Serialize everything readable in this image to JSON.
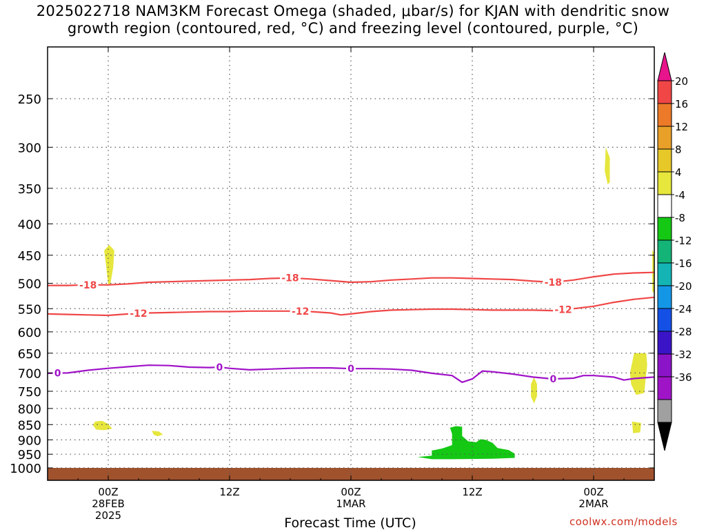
{
  "title": {
    "line1": "2025022718 NAM3KM Forecast Omega (shaded, μbar/s) for KJAN with dendritic snow",
    "line2": "growth region (contoured, red, °C) and freezing level (contoured, purple, °C)"
  },
  "credit": "coolwx.com/models",
  "chart_data": {
    "type": "time-height cross-section",
    "xlabel": "Forecast Time (UTC)",
    "x_units": "hours since 2025-02-27 18Z",
    "xlim": [
      0,
      60
    ],
    "x_ticks": [
      {
        "h": 6,
        "lines": [
          "00Z",
          "28FEB",
          "2025"
        ]
      },
      {
        "h": 18,
        "lines": [
          "12Z"
        ]
      },
      {
        "h": 30,
        "lines": [
          "00Z",
          "1MAR"
        ]
      },
      {
        "h": 42,
        "lines": [
          "12Z"
        ]
      },
      {
        "h": 54,
        "lines": [
          "00Z",
          "2MAR"
        ]
      }
    ],
    "ylabel": "",
    "y_units": "hPa",
    "y_scale": "log",
    "ylim": [
      1000,
      200
    ],
    "y_ticks": [
      250,
      300,
      350,
      400,
      450,
      500,
      550,
      600,
      650,
      700,
      750,
      800,
      850,
      900,
      950,
      1000
    ],
    "grid": true,
    "colorbar": {
      "labels": [
        20,
        16,
        12,
        8,
        4,
        -4,
        -8,
        -12,
        -16,
        -20,
        -24,
        -28,
        -32,
        -36
      ],
      "colors": [
        "#e8148c",
        "#f04646",
        "#ec7a28",
        "#e8a028",
        "#e6c828",
        "#e6e63c",
        "#ffffff",
        "#14c814",
        "#14b478",
        "#14b4b4",
        "#1496e6",
        "#1450e6",
        "#3c14c8",
        "#8c14c8",
        "#a014c8",
        "#a0a0a0",
        "#000000"
      ]
    },
    "contours": [
      {
        "label": "-18",
        "kind": "dendritic",
        "color": "#f04646",
        "points": [
          [
            0,
            504
          ],
          [
            2,
            504
          ],
          [
            4,
            503
          ],
          [
            6,
            503
          ],
          [
            8,
            501
          ],
          [
            10,
            498
          ],
          [
            12,
            497
          ],
          [
            14,
            496
          ],
          [
            16,
            495
          ],
          [
            18,
            494
          ],
          [
            20,
            493
          ],
          [
            22,
            491
          ],
          [
            24,
            490
          ],
          [
            26,
            492
          ],
          [
            28,
            495
          ],
          [
            30,
            498
          ],
          [
            32,
            497
          ],
          [
            34,
            494
          ],
          [
            36,
            492
          ],
          [
            38,
            490
          ],
          [
            40,
            490
          ],
          [
            42,
            491
          ],
          [
            44,
            492
          ],
          [
            46,
            493
          ],
          [
            48,
            496
          ],
          [
            50,
            498
          ],
          [
            52,
            494
          ],
          [
            54,
            488
          ],
          [
            56,
            483
          ],
          [
            58,
            481
          ],
          [
            60,
            480
          ]
        ],
        "labels_at": [
          4,
          24,
          50
        ]
      },
      {
        "label": "-12",
        "kind": "dendritic",
        "color": "#f04646",
        "points": [
          [
            0,
            561
          ],
          [
            2,
            562
          ],
          [
            4,
            563
          ],
          [
            6,
            564
          ],
          [
            8,
            561
          ],
          [
            10,
            559
          ],
          [
            12,
            558
          ],
          [
            14,
            557
          ],
          [
            16,
            556
          ],
          [
            18,
            556
          ],
          [
            20,
            555
          ],
          [
            22,
            555
          ],
          [
            24,
            555
          ],
          [
            26,
            556
          ],
          [
            28,
            559
          ],
          [
            29,
            563
          ],
          [
            30,
            561
          ],
          [
            32,
            556
          ],
          [
            34,
            553
          ],
          [
            36,
            552
          ],
          [
            38,
            551
          ],
          [
            40,
            551
          ],
          [
            42,
            552
          ],
          [
            44,
            553
          ],
          [
            46,
            553
          ],
          [
            48,
            553
          ],
          [
            50,
            554
          ],
          [
            52,
            550
          ],
          [
            54,
            545
          ],
          [
            56,
            537
          ],
          [
            58,
            531
          ],
          [
            60,
            527
          ]
        ],
        "labels_at": [
          9,
          25,
          51
        ]
      },
      {
        "label": "0",
        "kind": "freezing",
        "color": "#a012c8",
        "points": [
          [
            0,
            701
          ],
          [
            2,
            700
          ],
          [
            4,
            693
          ],
          [
            6,
            688
          ],
          [
            8,
            684
          ],
          [
            10,
            680
          ],
          [
            12,
            681
          ],
          [
            14,
            685
          ],
          [
            16,
            686
          ],
          [
            17,
            685
          ],
          [
            18,
            688
          ],
          [
            20,
            692
          ],
          [
            22,
            690
          ],
          [
            24,
            688
          ],
          [
            26,
            687
          ],
          [
            28,
            687
          ],
          [
            30,
            689
          ],
          [
            32,
            689
          ],
          [
            34,
            690
          ],
          [
            36,
            693
          ],
          [
            38,
            701
          ],
          [
            40,
            707
          ],
          [
            41,
            725
          ],
          [
            42,
            716
          ],
          [
            43,
            695
          ],
          [
            44,
            697
          ],
          [
            46,
            703
          ],
          [
            48,
            711
          ],
          [
            50,
            716
          ],
          [
            52,
            714
          ],
          [
            53,
            707
          ],
          [
            54,
            707
          ],
          [
            56,
            711
          ],
          [
            57,
            719
          ],
          [
            58,
            715
          ],
          [
            60,
            711
          ]
        ],
        "labels_at": [
          1,
          17,
          30,
          50
        ]
      }
    ],
    "shading": [
      {
        "class": "4 to 8",
        "color": "#e6e63c",
        "polygons": [
          [
            [
              6.1,
              433
            ],
            [
              6.6,
              442
            ],
            [
              6.5,
              470
            ],
            [
              6.2,
              503
            ],
            [
              6.0,
              503
            ],
            [
              5.8,
              470
            ],
            [
              5.6,
              442
            ]
          ],
          [
            [
              4.7,
              840
            ],
            [
              5.4,
              838
            ],
            [
              6.0,
              848
            ],
            [
              6.4,
              863
            ],
            [
              5.6,
              868
            ],
            [
              4.8,
              866
            ],
            [
              4.5,
              852
            ]
          ],
          [
            [
              10.3,
              870
            ],
            [
              11.0,
              872
            ],
            [
              11.4,
              882
            ],
            [
              10.9,
              888
            ],
            [
              10.5,
              883
            ]
          ],
          [
            [
              48.1,
              712
            ],
            [
              48.4,
              730
            ],
            [
              48.4,
              764
            ],
            [
              48.1,
              785
            ],
            [
              47.8,
              765
            ],
            [
              47.8,
              730
            ]
          ],
          [
            [
              55.2,
              300
            ],
            [
              55.6,
              312
            ],
            [
              55.6,
              342
            ],
            [
              55.4,
              345
            ],
            [
              55.1,
              328
            ]
          ],
          [
            [
              59.8,
              440
            ],
            [
              60.0,
              448
            ],
            [
              60.0,
              520
            ],
            [
              59.8,
              515
            ],
            [
              59.8,
              480
            ]
          ],
          [
            [
              58.0,
              650
            ],
            [
              59.2,
              650
            ],
            [
              59.3,
              680
            ],
            [
              59.0,
              755
            ],
            [
              58.2,
              760
            ],
            [
              57.7,
              730
            ],
            [
              57.6,
              700
            ]
          ],
          [
            [
              57.8,
              840
            ],
            [
              58.7,
              845
            ],
            [
              58.6,
              875
            ],
            [
              57.9,
              878
            ]
          ]
        ]
      },
      {
        "class": "-8 to -4",
        "color": "#14c814",
        "polygons": [
          [
            [
              38.0,
              937
            ],
            [
              39.0,
              930
            ],
            [
              40.0,
              918
            ],
            [
              40.0,
              880
            ],
            [
              39.8,
              860
            ],
            [
              40.4,
              855
            ],
            [
              41.0,
              857
            ],
            [
              41.0,
              887
            ],
            [
              41.6,
              905
            ],
            [
              42.4,
              908
            ],
            [
              42.8,
              898
            ],
            [
              43.3,
              900
            ],
            [
              44.0,
              910
            ],
            [
              44.5,
              928
            ],
            [
              45.6,
              935
            ],
            [
              46.2,
              948
            ],
            [
              46.2,
              963
            ],
            [
              44.0,
              966
            ],
            [
              40.0,
              968
            ],
            [
              38.0,
              968
            ],
            [
              36.6,
              960
            ],
            [
              38.0,
              955
            ]
          ]
        ]
      }
    ],
    "terrain": {
      "color": "#a0522d",
      "top_hpa": 1000
    }
  }
}
